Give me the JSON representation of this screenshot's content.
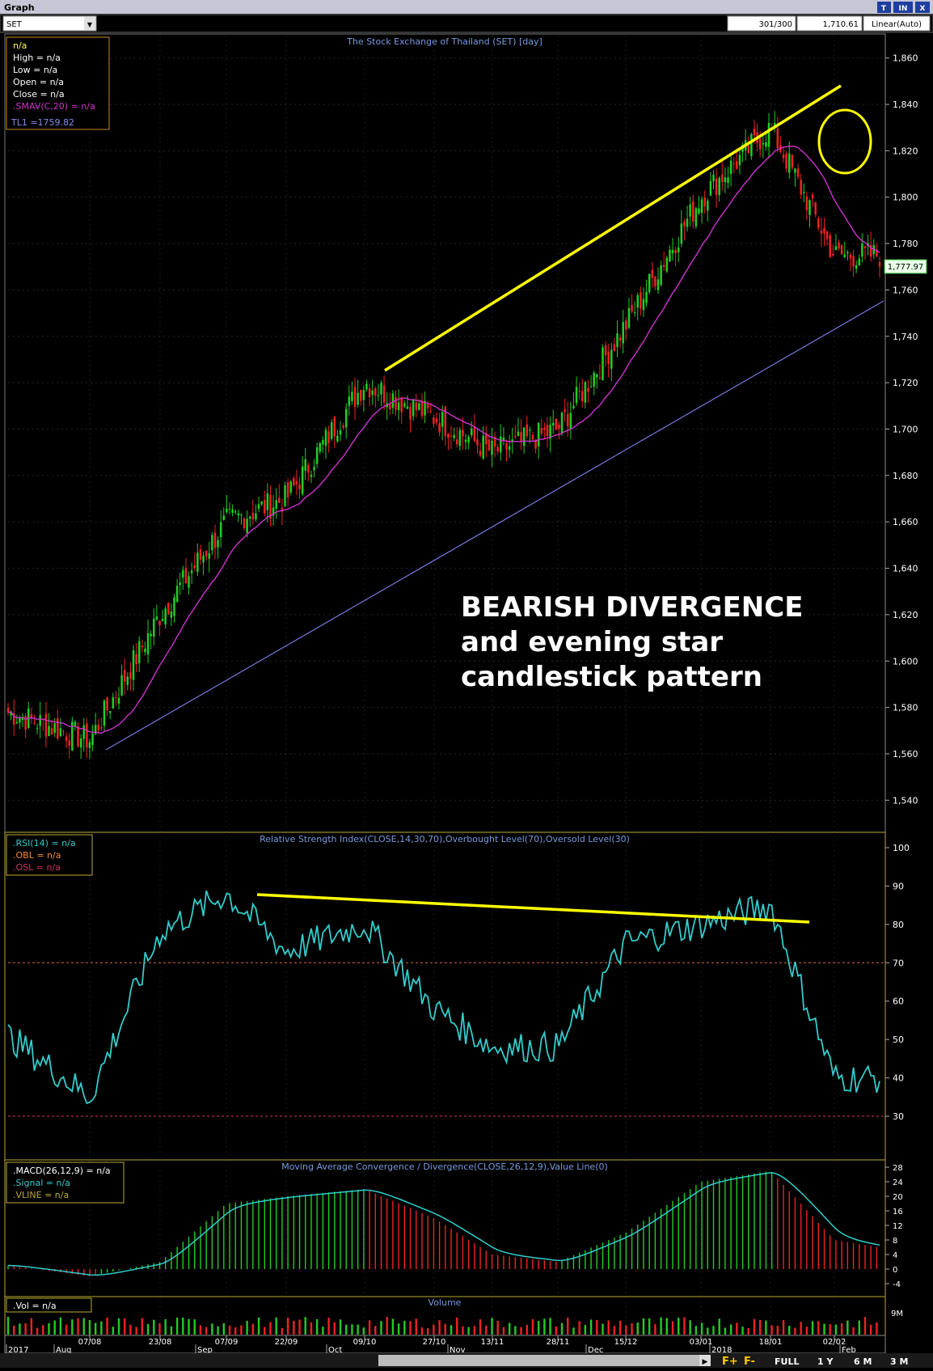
{
  "window": {
    "title": "Graph",
    "buttons": [
      "T",
      "IN",
      "X"
    ]
  },
  "toolbar": {
    "symbol": "SET",
    "bars": "301/300",
    "last": "1,710.61",
    "scale": "Linear(Auto)"
  },
  "colors": {
    "up": "#22cc22",
    "down": "#ee2222",
    "sma": "#cc33cc",
    "tl": "#7777dd",
    "rsi": "#33cccc",
    "annot": "#ffff00",
    "panel_border": "#bbaa33"
  },
  "price_panel": {
    "title": "The Stock Exchange of Thailand (SET) [day]",
    "legend": {
      "name": "n/a",
      "high": "High  = n/a",
      "low": "Low  = n/a",
      "open": "Open  = n/a",
      "close": "Close  = n/a",
      "sma": ".SMAV(C,20)  = n/a",
      "tl": "TL1 =1759.82"
    },
    "axis_ticks": [
      "1,860",
      "1,840",
      "1,820",
      "1,800",
      "1,780",
      "1,760",
      "1,740",
      "1,720",
      "1,700",
      "1,680",
      "1,660",
      "1,640",
      "1,620",
      "1,600",
      "1,580",
      "1,560",
      "1,540"
    ],
    "last_price_label": "1,777.97",
    "annotation": [
      "BEARISH DIVERGENCE",
      "and evening star",
      "candlestick pattern"
    ]
  },
  "rsi_panel": {
    "title": "Relative Strength Index(CLOSE,14,30,70),Overbought Level(70),Oversold Level(30)",
    "legend": {
      "rsi": ".RSI(14)  = n/a",
      "obl": ".OBL  = n/a",
      "osl": ".OSL  = n/a"
    },
    "axis_ticks": [
      "100",
      "90",
      "80",
      "70",
      "60",
      "50",
      "40",
      "30"
    ]
  },
  "macd_panel": {
    "title": "Moving Average Convergence / Divergence(CLOSE,26,12,9),Value Line(0)",
    "legend": {
      "macd": ".MACD(26,12,9)  = n/a",
      "signal": ".Signal  = n/a",
      "vline": ".VLINE  = n/a"
    },
    "axis_ticks": [
      "28",
      "24",
      "20",
      "16",
      "12",
      "8",
      "4",
      "0",
      "-4"
    ]
  },
  "vol_panel": {
    "title": "Volume",
    "legend": ".Vol  = n/a",
    "axis_tick": "9M"
  },
  "date_axis": {
    "upper": [
      "07/08",
      "23/08",
      "07/09",
      "22/09",
      "09/10",
      "27/10",
      "13/11",
      "28/11",
      "15/12",
      "03/01",
      "18/01",
      "02/02"
    ],
    "lower": [
      "2017",
      "Aug",
      "Sep",
      "Oct",
      "Nov",
      "Dec",
      "2018",
      "Feb"
    ]
  },
  "bottom_buttons": [
    "F+",
    "F-",
    "FULL",
    "1 Y",
    "6 M",
    "3 M"
  ],
  "chart_data": {
    "type": "candlestick",
    "title": "The Stock Exchange of Thailand (SET) [day]",
    "price_ylim": [
      1530,
      1870
    ],
    "anchor_closes": [
      [
        "07/08",
        1566
      ],
      [
        "23/08",
        1620
      ],
      [
        "07/09",
        1660
      ],
      [
        "22/09",
        1670
      ],
      [
        "09/10",
        1720
      ],
      [
        "27/10",
        1705
      ],
      [
        "13/11",
        1690
      ],
      [
        "28/11",
        1700
      ],
      [
        "15/12",
        1745
      ],
      [
        "03/01",
        1800
      ],
      [
        "18/01",
        1830
      ],
      [
        "02/02",
        1775
      ]
    ],
    "rsi_anchors": [
      [
        "07/08",
        35
      ],
      [
        "23/08",
        78
      ],
      [
        "07/09",
        88
      ],
      [
        "22/09",
        73
      ],
      [
        "09/10",
        80
      ],
      [
        "27/10",
        58
      ],
      [
        "13/11",
        48
      ],
      [
        "28/11",
        48
      ],
      [
        "15/12",
        75
      ],
      [
        "03/01",
        80
      ],
      [
        "18/01",
        85
      ],
      [
        "02/02",
        40
      ]
    ],
    "rsi_levels": {
      "overbought": 70,
      "oversold": 30
    },
    "rsi_ylim": [
      22,
      104
    ],
    "macd_anchors": [
      [
        "07/08",
        -2
      ],
      [
        "23/08",
        2
      ],
      [
        "07/09",
        18
      ],
      [
        "22/09",
        20
      ],
      [
        "09/10",
        22
      ],
      [
        "27/10",
        14
      ],
      [
        "13/11",
        4
      ],
      [
        "28/11",
        2
      ],
      [
        "15/12",
        10
      ],
      [
        "03/01",
        24
      ],
      [
        "18/01",
        27
      ],
      [
        "02/02",
        8
      ]
    ],
    "macd_ylim": [
      -6,
      30
    ]
  }
}
